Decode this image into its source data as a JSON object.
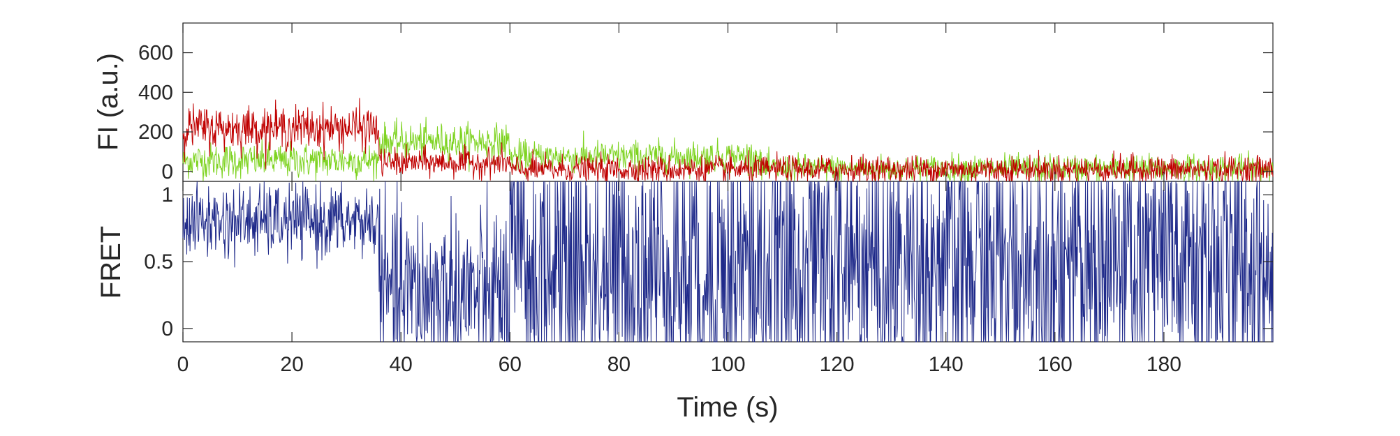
{
  "chart_data": [
    {
      "type": "line",
      "panel": "top",
      "title": "",
      "xlabel": "",
      "ylabel": "FI (a.u.)",
      "xlim": [
        0,
        200
      ],
      "ylim": [
        -50,
        750
      ],
      "xticks": [
        0,
        20,
        40,
        60,
        80,
        100,
        120,
        140,
        160,
        180
      ],
      "yticks": [
        0,
        200,
        400,
        600
      ],
      "ytick_labels": [
        "0",
        "200",
        "400",
        "600"
      ],
      "grid": false,
      "legend": "none",
      "series": [
        {
          "color": "#7ed321",
          "segments": [
            {
              "x": [
                0,
                36
              ],
              "mean": 55,
              "noise": 45
            },
            {
              "x": [
                36,
                60
              ],
              "mean": 150,
              "noise": 45
            },
            {
              "x": [
                60,
                106
              ],
              "mean": 75,
              "noise": 40
            },
            {
              "x": [
                106,
                200
              ],
              "mean": 15,
              "noise": 35
            }
          ]
        },
        {
          "color": "#c00000",
          "segments": [
            {
              "x": [
                0,
                36
              ],
              "mean": 220,
              "noise": 55
            },
            {
              "x": [
                36,
                60
              ],
              "mean": 45,
              "noise": 35
            },
            {
              "x": [
                60,
                200
              ],
              "mean": 10,
              "noise": 35
            }
          ]
        }
      ]
    },
    {
      "type": "line",
      "panel": "bottom",
      "title": "",
      "xlabel": "Time (s)",
      "ylabel": "FRET",
      "xlim": [
        0,
        200
      ],
      "ylim": [
        -0.1,
        1.1
      ],
      "xticks": [
        0,
        20,
        40,
        60,
        80,
        100,
        120,
        140,
        160,
        180
      ],
      "xtick_labels": [
        "0",
        "20",
        "40",
        "60",
        "80",
        "100",
        "120",
        "140",
        "160",
        "180"
      ],
      "yticks": [
        0,
        0.5,
        1
      ],
      "ytick_labels": [
        "0",
        "0.5",
        "1"
      ],
      "grid": false,
      "legend": "none",
      "series": [
        {
          "color": "#1f2a8a",
          "segments": [
            {
              "x": [
                0,
                36
              ],
              "mean": 0.8,
              "noise": 0.14
            },
            {
              "x": [
                36,
                60
              ],
              "mean": 0.25,
              "noise": 0.35
            },
            {
              "x": [
                60,
                200
              ],
              "mean": 0.45,
              "noise": 0.6
            }
          ]
        }
      ]
    }
  ]
}
